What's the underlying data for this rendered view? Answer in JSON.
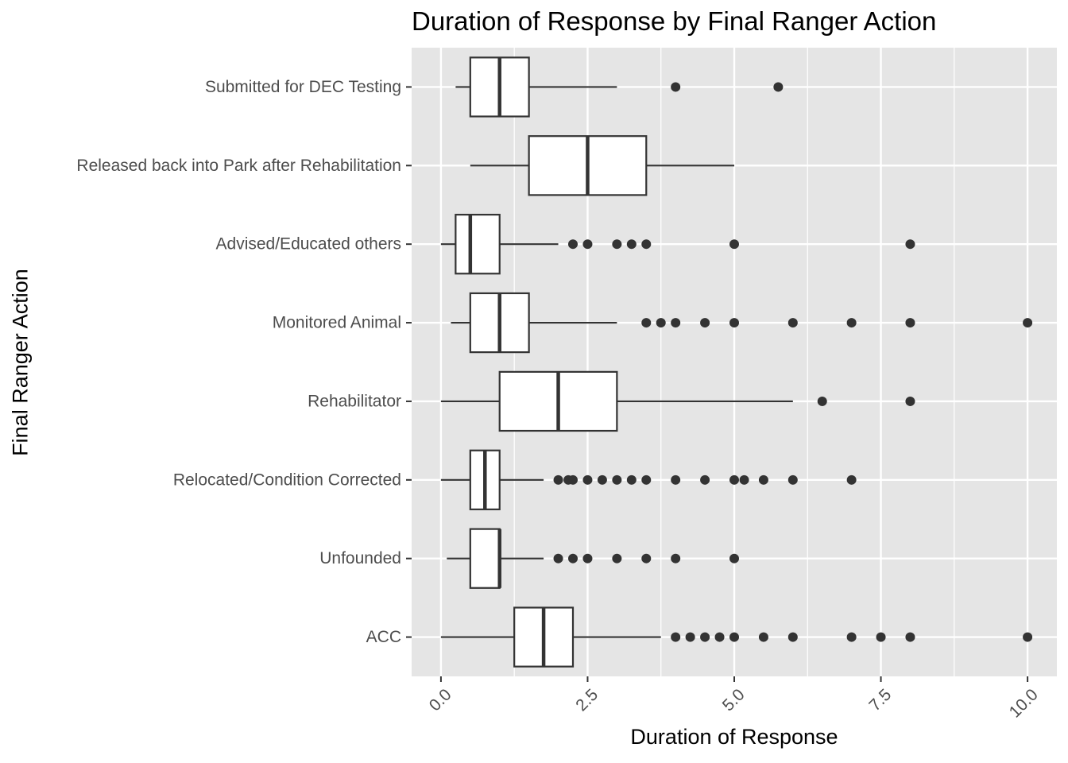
{
  "chart_data": {
    "type": "boxplot",
    "title": "Duration of Response by Final Ranger Action",
    "xlabel": "Duration of Response",
    "ylabel": "Final Ranger Action",
    "xlim": [
      -0.5,
      10.5
    ],
    "x_ticks": [
      0,
      2.5,
      5,
      7.5,
      10
    ],
    "x_tick_labels": [
      "0.0",
      "2.5",
      "5.0",
      "7.5",
      "10.0"
    ],
    "grid": true,
    "colors": {
      "panel_background": "#e5e5e5",
      "grid_line": "#ffffff",
      "box_fill": "#ffffff",
      "box_stroke": "#333333",
      "outlier": "#333333",
      "axis_text": "#4d4d4d"
    },
    "categories": [
      "Submitted for DEC Testing",
      "Released back into Park after Rehabilitation",
      "Advised/Educated others",
      "Monitored Animal",
      "Rehabilitator",
      "Relocated/Condition Corrected",
      "Unfounded",
      "ACC"
    ],
    "boxes": [
      {
        "category": "Submitted for DEC Testing",
        "whisker_low": 0.25,
        "q1": 0.5,
        "median": 1.0,
        "q3": 1.5,
        "whisker_high": 3.0,
        "outliers": [
          4.0,
          5.75
        ]
      },
      {
        "category": "Released back into Park after Rehabilitation",
        "whisker_low": 0.5,
        "q1": 1.5,
        "median": 2.5,
        "q3": 3.5,
        "whisker_high": 5.0,
        "outliers": []
      },
      {
        "category": "Advised/Educated others",
        "whisker_low": 0.0,
        "q1": 0.25,
        "median": 0.5,
        "q3": 1.0,
        "whisker_high": 2.0,
        "outliers": [
          2.25,
          2.5,
          3.0,
          3.25,
          3.5,
          5.0,
          8.0
        ]
      },
      {
        "category": "Monitored Animal",
        "whisker_low": 0.17,
        "q1": 0.5,
        "median": 1.0,
        "q3": 1.5,
        "whisker_high": 3.0,
        "outliers": [
          3.5,
          3.75,
          4.0,
          4.5,
          5.0,
          6.0,
          7.0,
          8.0,
          10.0
        ]
      },
      {
        "category": "Rehabilitator",
        "whisker_low": 0.0,
        "q1": 1.0,
        "median": 2.0,
        "q3": 3.0,
        "whisker_high": 6.0,
        "outliers": [
          6.5,
          8.0
        ]
      },
      {
        "category": "Relocated/Condition Corrected",
        "whisker_low": 0.0,
        "q1": 0.5,
        "median": 0.75,
        "q3": 1.0,
        "whisker_high": 1.75,
        "outliers": [
          2.0,
          2.17,
          2.25,
          2.5,
          2.75,
          3.0,
          3.25,
          3.5,
          4.0,
          4.5,
          5.0,
          5.17,
          5.5,
          6.0,
          7.0
        ]
      },
      {
        "category": "Unfounded",
        "whisker_low": 0.1,
        "q1": 0.5,
        "median": 1.0,
        "q3": 1.0,
        "whisker_high": 1.75,
        "outliers": [
          2.0,
          2.25,
          2.5,
          3.0,
          3.5,
          4.0,
          5.0
        ]
      },
      {
        "category": "ACC",
        "whisker_low": 0.0,
        "q1": 1.25,
        "median": 1.75,
        "q3": 2.25,
        "whisker_high": 3.75,
        "outliers": [
          4.0,
          4.25,
          4.5,
          4.75,
          5.0,
          5.5,
          6.0,
          7.0,
          7.5,
          8.0,
          10.0
        ]
      }
    ]
  }
}
